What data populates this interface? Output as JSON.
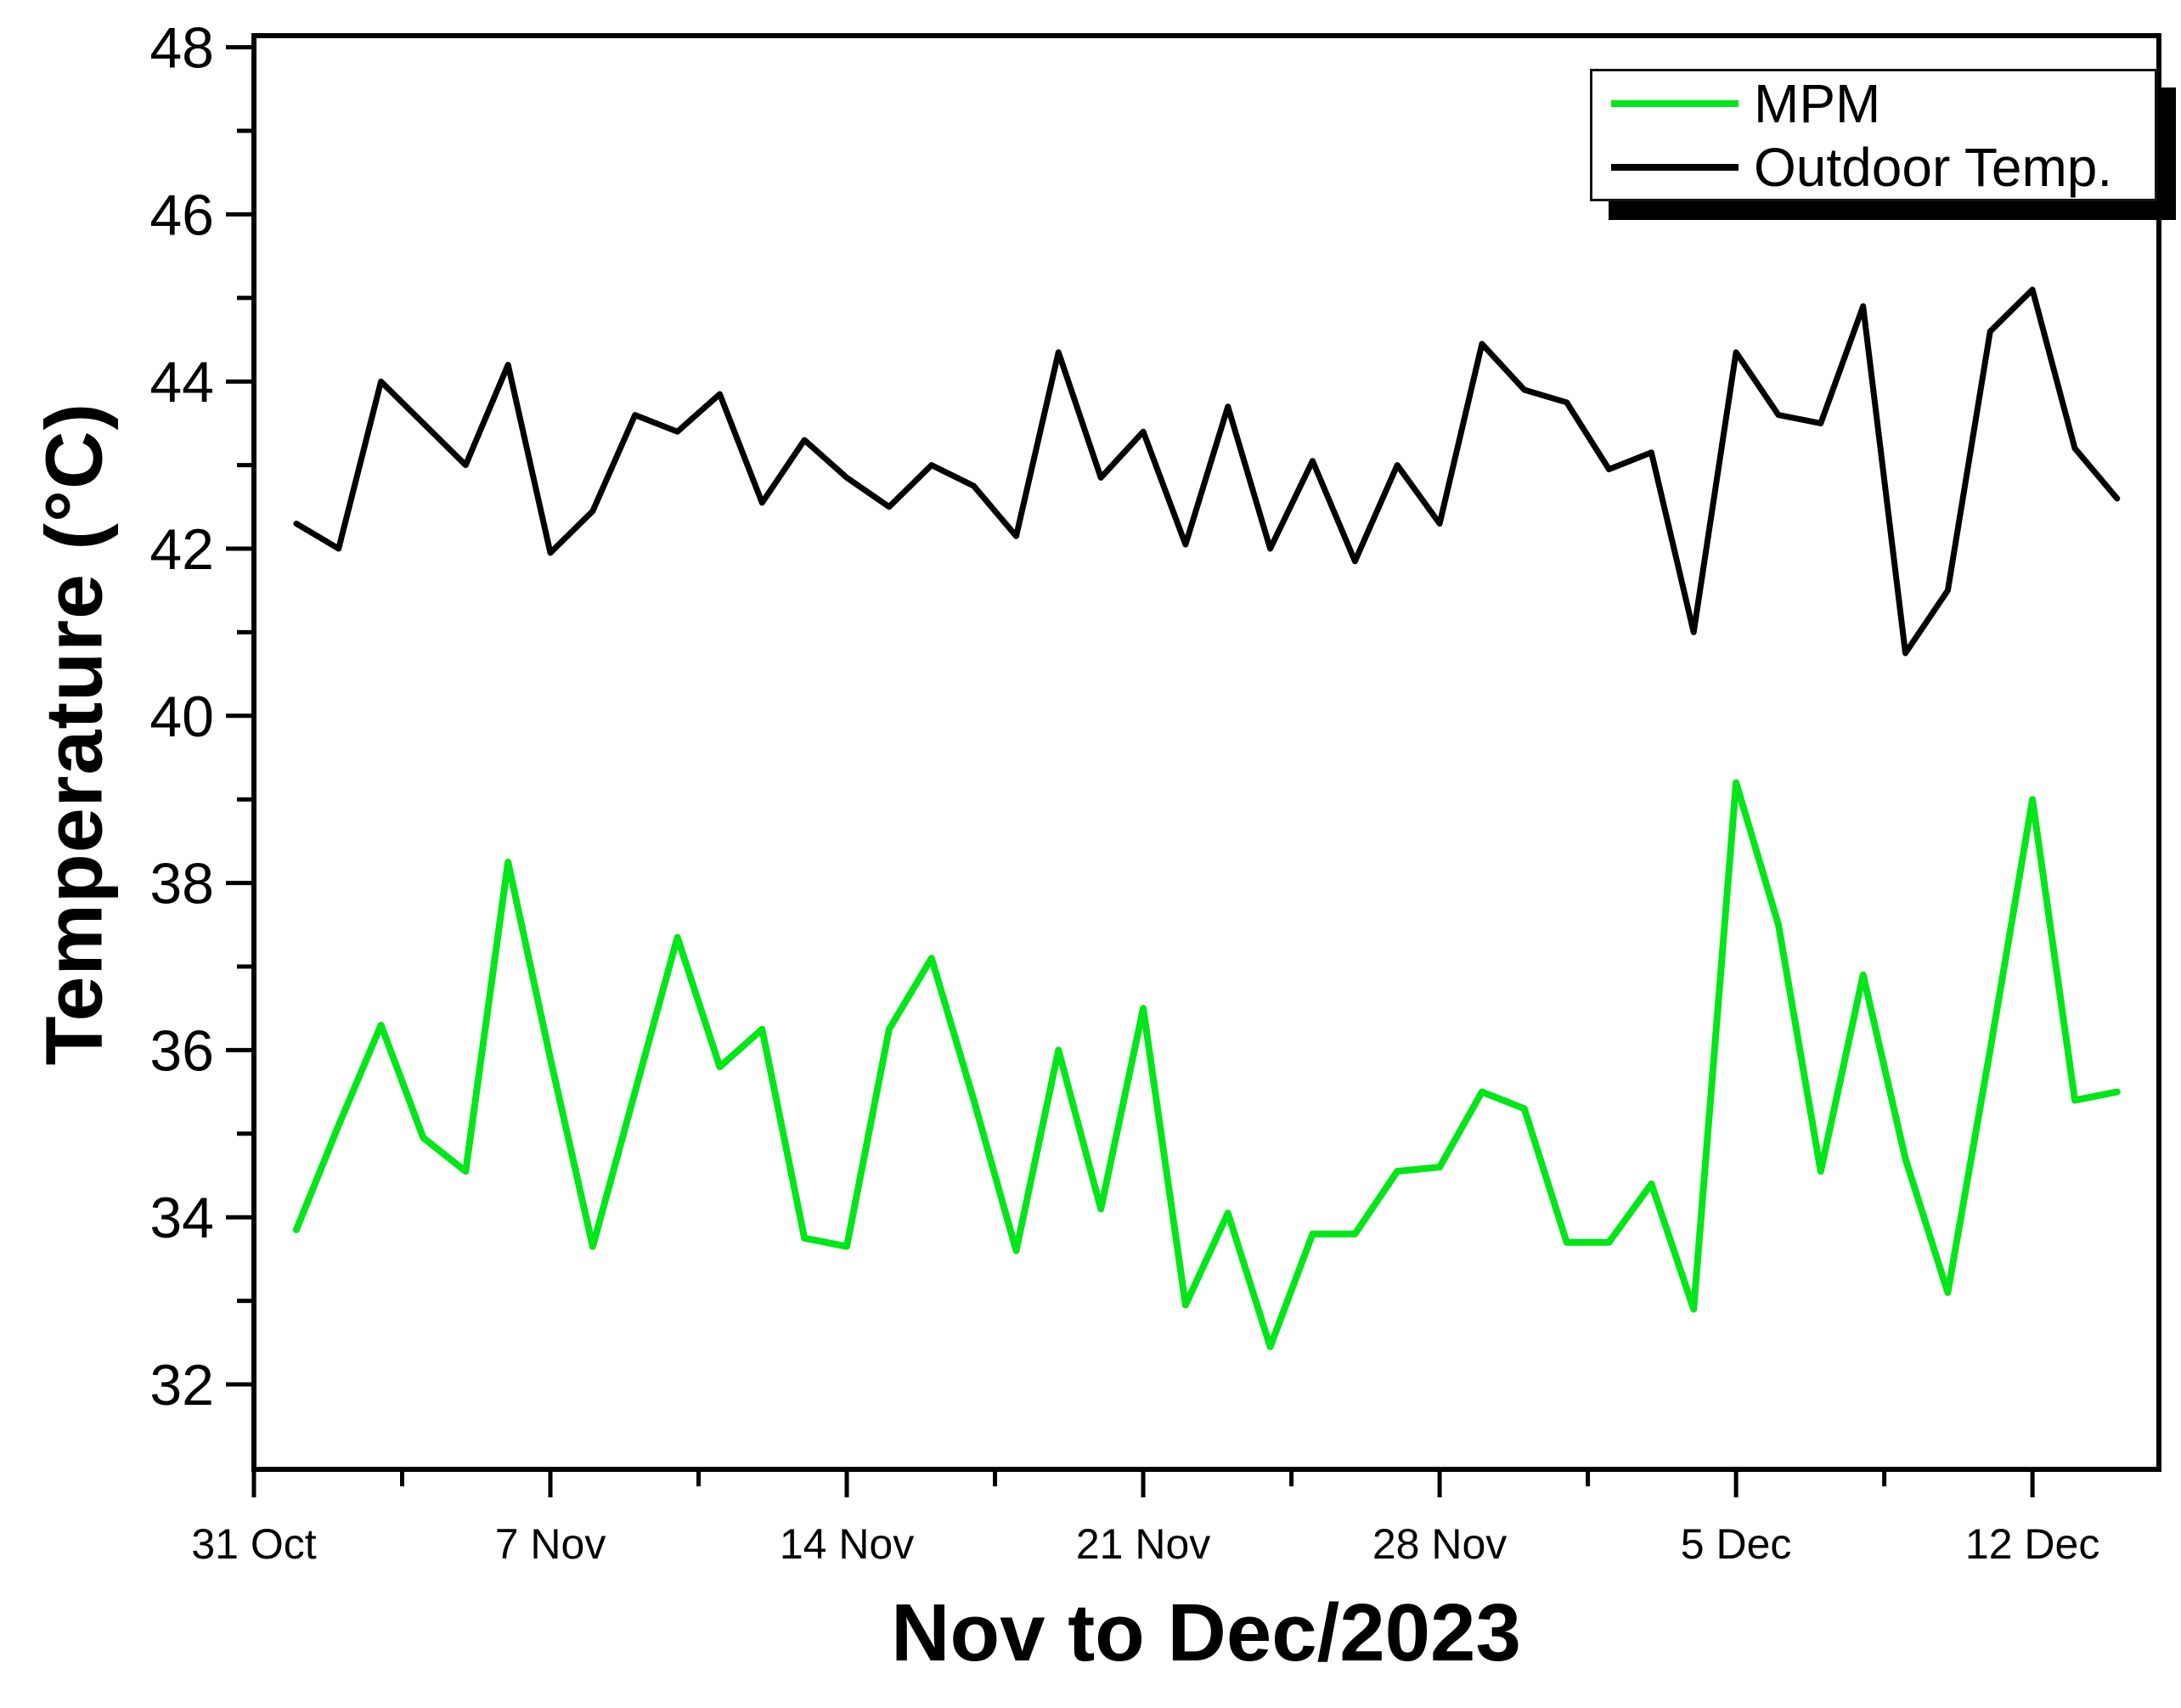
{
  "chart_data": {
    "type": "line",
    "title": "",
    "xlabel": "Nov to Dec/2023",
    "ylabel": "Temperature (°C)",
    "grid": false,
    "legend_position": "top-right",
    "ylim": [
      31.0,
      48.2
    ],
    "y_ticks": [
      32,
      34,
      36,
      38,
      40,
      42,
      44,
      46,
      48
    ],
    "y_minor_ticks": [
      33,
      35,
      37,
      39,
      41,
      43,
      45,
      47
    ],
    "x_tick_labels": [
      "31 Oct",
      "7 Nov",
      "14 Nov",
      "21 Nov",
      "28 Nov",
      "5 Dec",
      "12 Dec"
    ],
    "x_tick_day_offsets": [
      0,
      7,
      14,
      21,
      28,
      35,
      42
    ],
    "x_minor_day_offsets": [
      3.5,
      10.5,
      17.5,
      24.5,
      31.5,
      38.5
    ],
    "categories": [
      "1 Nov",
      "2 Nov",
      "3 Nov",
      "4 Nov",
      "5 Nov",
      "6 Nov",
      "7 Nov",
      "8 Nov",
      "9 Nov",
      "10 Nov",
      "11 Nov",
      "12 Nov",
      "13 Nov",
      "14 Nov",
      "15 Nov",
      "16 Nov",
      "17 Nov",
      "18 Nov",
      "19 Nov",
      "20 Nov",
      "21 Nov",
      "22 Nov",
      "23 Nov",
      "24 Nov",
      "25 Nov",
      "26 Nov",
      "27 Nov",
      "28 Nov",
      "29 Nov",
      "30 Nov",
      "1 Dec",
      "2 Dec",
      "3 Dec",
      "4 Dec",
      "5 Dec",
      "6 Dec",
      "7 Dec",
      "8 Dec",
      "9 Dec",
      "10 Dec",
      "11 Dec",
      "12 Dec",
      "13 Dec",
      "14 Dec"
    ],
    "series": [
      {
        "name": "MPM",
        "color": "#00E619",
        "values": [
          33.85,
          35.1,
          36.3,
          34.95,
          34.55,
          38.25,
          35.9,
          33.65,
          35.5,
          37.35,
          35.8,
          36.25,
          33.75,
          33.65,
          36.25,
          37.1,
          35.4,
          33.6,
          36.0,
          34.1,
          36.5,
          32.95,
          34.05,
          32.45,
          33.8,
          33.8,
          34.55,
          34.6,
          35.5,
          35.3,
          33.7,
          33.7,
          34.4,
          32.9,
          39.2,
          37.5,
          34.55,
          36.9,
          34.7,
          33.1,
          36.0,
          39.0,
          35.4,
          35.5
        ]
      },
      {
        "name": "Outdoor Temp.",
        "color": "#000000",
        "values": [
          42.3,
          42.0,
          44.0,
          43.5,
          43.0,
          44.2,
          41.95,
          42.45,
          43.6,
          43.4,
          43.85,
          42.55,
          43.3,
          42.85,
          42.5,
          43.0,
          42.75,
          42.15,
          44.35,
          42.85,
          43.4,
          42.05,
          43.7,
          42.0,
          43.05,
          41.85,
          43.0,
          42.3,
          44.45,
          43.9,
          43.75,
          42.95,
          43.15,
          41.0,
          44.35,
          43.6,
          43.5,
          44.9,
          40.75,
          41.5,
          44.6,
          45.1,
          43.2,
          42.6
        ]
      }
    ]
  }
}
